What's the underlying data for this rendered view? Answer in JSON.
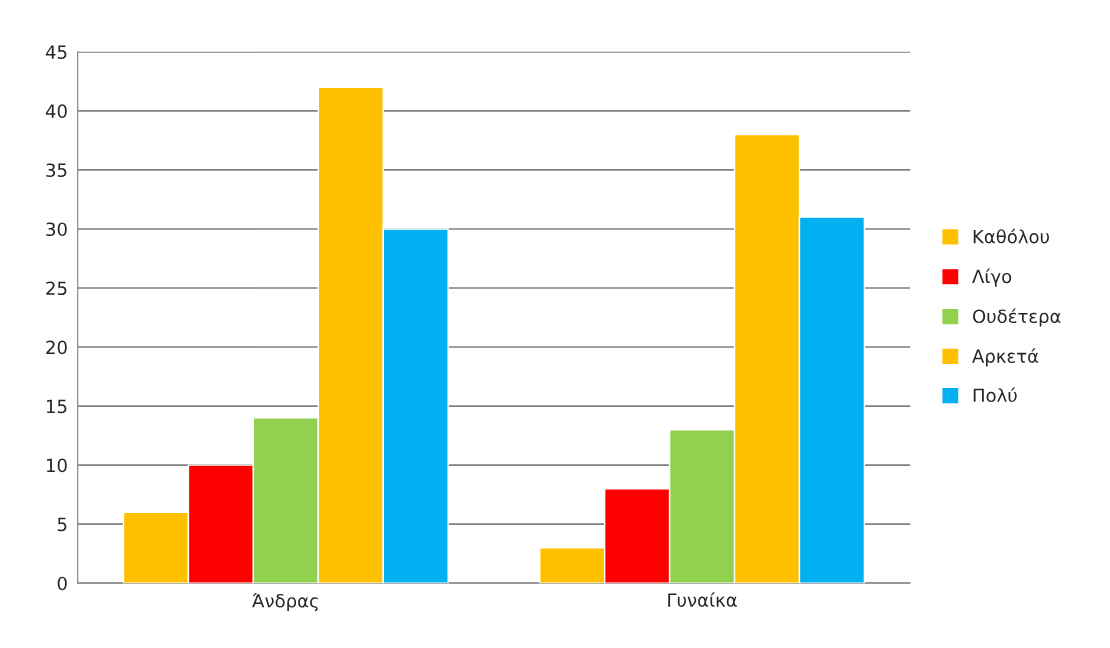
{
  "chart_data": {
    "type": "bar",
    "categories": [
      "Άνδρας",
      "Γυναίκα"
    ],
    "series": [
      {
        "name": "Καθόλου",
        "color": "#ffc000",
        "values": [
          6,
          3
        ]
      },
      {
        "name": "Λίγο",
        "color": "#ff0000",
        "values": [
          10,
          8
        ]
      },
      {
        "name": "Ουδέτερα",
        "color": "#92d050",
        "values": [
          14,
          13
        ]
      },
      {
        "name": "Αρκετά",
        "color": "#ffc000",
        "values": [
          42,
          38
        ]
      },
      {
        "name": "Πολύ",
        "color": "#00b0f0",
        "values": [
          30,
          31
        ]
      }
    ],
    "ylim": [
      0,
      45
    ],
    "yticks": [
      0,
      5,
      10,
      15,
      20,
      25,
      30,
      35,
      40,
      45
    ],
    "grid": "y",
    "legend": "right"
  }
}
